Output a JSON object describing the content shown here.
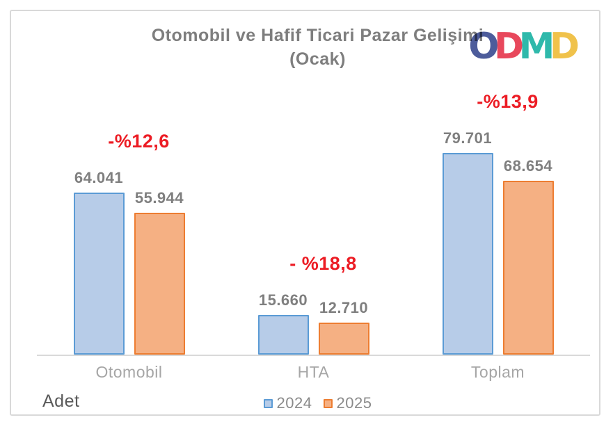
{
  "title": {
    "line1": "Otomobil ve Hafif Ticari Pazar Gelişimi",
    "line2": "(Ocak)"
  },
  "logo": {
    "letters": [
      {
        "char": "O",
        "color": "#4d5c9b"
      },
      {
        "char": "D",
        "color": "#e8485c"
      },
      {
        "char": "M",
        "color": "#2fb9ab"
      },
      {
        "char": "D",
        "color": "#f0c24b"
      }
    ]
  },
  "axis_label": "Adet",
  "colors": {
    "series_2024_fill": "#b7cce8",
    "series_2024_border": "#5b9bd5",
    "series_2025_fill": "#f5b083",
    "series_2025_border": "#ed7d31",
    "change_label": "#ec1c24",
    "value_label": "#7f7f7f",
    "category_label": "#a6a6a6",
    "title": "#7e7e7e",
    "axis_line": "#d9d9d9"
  },
  "legend": {
    "items": [
      {
        "label": "2024",
        "fill": "#b7cce8",
        "border": "#5b9bd5"
      },
      {
        "label": "2025",
        "fill": "#f5b083",
        "border": "#ed7d31"
      }
    ],
    "position": "bottom-center"
  },
  "chart_data": {
    "type": "bar",
    "title": "Otomobil ve Hafif Ticari Pazar Gelişimi (Ocak)",
    "categories": [
      "Otomobil",
      "HTA",
      "Toplam"
    ],
    "series": [
      {
        "name": "2024",
        "values": [
          64041,
          15660,
          79701
        ],
        "value_labels": [
          "64.041",
          "15.660",
          "79.701"
        ],
        "fill": "#b7cce8",
        "border": "#5b9bd5"
      },
      {
        "name": "2025",
        "values": [
          55944,
          12710,
          68654
        ],
        "value_labels": [
          "55.944",
          "12.710",
          "68.654"
        ],
        "fill": "#f5b083",
        "border": "#ed7d31"
      }
    ],
    "change_labels": [
      "-%12,6",
      "- %18,8",
      "-%13,9"
    ],
    "xlabel": "",
    "ylabel": "Adet",
    "ylim": [
      0,
      88000
    ],
    "grid": false,
    "legend_position": "bottom"
  }
}
